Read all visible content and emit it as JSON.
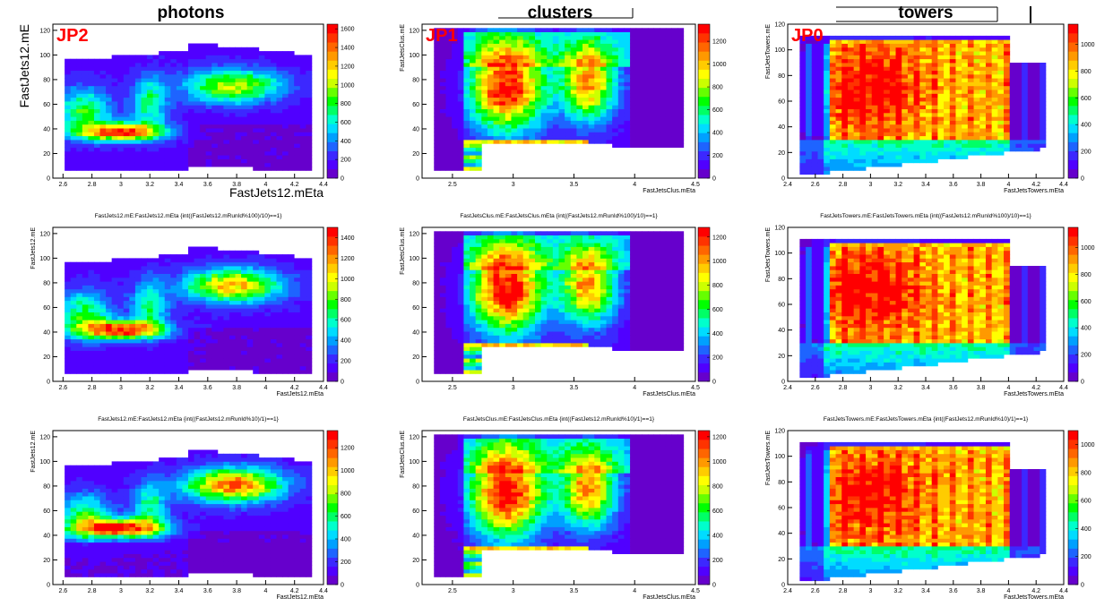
{
  "headers": {
    "photons": "photons",
    "clusters": "clusters",
    "towers": "towers"
  },
  "trigger_labels": [
    "JP2",
    "JP1",
    "JP0"
  ],
  "trigger_color": "#ff0000",
  "palette": [
    "#6600cc",
    "#5000ff",
    "#3c28ff",
    "#1e64ff",
    "#00a0ff",
    "#00dcff",
    "#00ffcc",
    "#00ff66",
    "#00ff00",
    "#66ff00",
    "#ccff00",
    "#ffff00",
    "#ffcc00",
    "#ff9900",
    "#ff6600",
    "#ff3300",
    "#ff0000"
  ],
  "chart_data": [
    {
      "type": "heatmap",
      "row": 0,
      "col": 0,
      "title": "",
      "xlabel": "FastJets12.mEta",
      "ylabel": "FastJets12.mE",
      "xlim": [
        2.53,
        4.4
      ],
      "ylim": [
        0,
        125
      ],
      "xticks": [
        "2.6",
        "2.8",
        "3",
        "3.2",
        "3.4",
        "3.6",
        "3.8",
        "4",
        "4.2",
        "4.4"
      ],
      "yticks": [
        "0",
        "20",
        "40",
        "60",
        "80",
        "100",
        "120"
      ],
      "zmax": 1650,
      "zticks": [
        "0",
        "200",
        "400",
        "600",
        "800",
        "1000",
        "1200",
        "1400",
        "1600"
      ]
    },
    {
      "type": "heatmap",
      "row": 0,
      "col": 1,
      "title": "",
      "xlabel": "FastJetsClus.mEta",
      "ylabel": "FastJetsClus.mE",
      "xlim": [
        2.25,
        4.5
      ],
      "ylim": [
        0,
        125
      ],
      "xticks": [
        "2.5",
        "3",
        "3.5",
        "4",
        "4.5"
      ],
      "yticks": [
        "0",
        "20",
        "40",
        "60",
        "80",
        "100",
        "120"
      ],
      "zmax": 1350,
      "zticks": [
        "0",
        "200",
        "400",
        "600",
        "800",
        "1000",
        "1200"
      ]
    },
    {
      "type": "heatmap",
      "row": 0,
      "col": 2,
      "title": "",
      "xlabel": "FastJetsTowers.mEta",
      "ylabel": "FastJetsTowers.mE",
      "xlim": [
        2.4,
        4.4
      ],
      "ylim": [
        0,
        120
      ],
      "xticks": [
        "2.4",
        "2.6",
        "2.8",
        "3",
        "3.2",
        "3.4",
        "3.6",
        "3.8",
        "4",
        "4.2",
        "4.4"
      ],
      "yticks": [
        "0",
        "20",
        "40",
        "60",
        "80",
        "100",
        "120"
      ],
      "zmax": 1150,
      "zticks": [
        "0",
        "200",
        "400",
        "600",
        "800",
        "1000"
      ]
    },
    {
      "type": "heatmap",
      "row": 1,
      "col": 0,
      "title": "FastJets12.mE:FastJets12.mEta {int((FastJets12.mRunId%100)/10)==1}",
      "xlabel": "FastJets12.mEta",
      "ylabel": "FastJets12.mE",
      "xlim": [
        2.53,
        4.4
      ],
      "ylim": [
        0,
        125
      ],
      "xticks": [
        "2.6",
        "2.8",
        "3",
        "3.2",
        "3.4",
        "3.6",
        "3.8",
        "4",
        "4.2",
        "4.4"
      ],
      "yticks": [
        "0",
        "20",
        "40",
        "60",
        "80",
        "100",
        "120"
      ],
      "zmax": 1500,
      "zticks": [
        "0",
        "200",
        "400",
        "600",
        "800",
        "1000",
        "1200",
        "1400"
      ]
    },
    {
      "type": "heatmap",
      "row": 1,
      "col": 1,
      "title": "FastJetsClus.mE:FastJetsClus.mEta {int((FastJets12.mRunId%100)/10)==1}",
      "xlabel": "FastJetsClus.mEta",
      "ylabel": "FastJetsClus.mE",
      "xlim": [
        2.25,
        4.5
      ],
      "ylim": [
        0,
        125
      ],
      "xticks": [
        "2.5",
        "3",
        "3.5",
        "4",
        "4.5"
      ],
      "yticks": [
        "0",
        "20",
        "40",
        "60",
        "80",
        "100",
        "120"
      ],
      "zmax": 1280,
      "zticks": [
        "0",
        "200",
        "400",
        "600",
        "800",
        "1000",
        "1200"
      ]
    },
    {
      "type": "heatmap",
      "row": 1,
      "col": 2,
      "title": "FastJetsTowers.mE:FastJetsTowers.mEta {int((FastJets12.mRunId%100)/10)==1}",
      "xlabel": "FastJetsTowers.mEta",
      "ylabel": "FastJetsTowers.mE",
      "xlim": [
        2.4,
        4.4
      ],
      "ylim": [
        0,
        120
      ],
      "xticks": [
        "2.4",
        "2.6",
        "2.8",
        "3",
        "3.2",
        "3.4",
        "3.6",
        "3.8",
        "4",
        "4.2",
        "4.4"
      ],
      "yticks": [
        "0",
        "20",
        "40",
        "60",
        "80",
        "100",
        "120"
      ],
      "zmax": 1150,
      "zticks": [
        "0",
        "200",
        "400",
        "600",
        "800",
        "1000"
      ]
    },
    {
      "type": "heatmap",
      "row": 2,
      "col": 0,
      "title": "FastJets12.mE:FastJets12.mEta {int((FastJets12.mRunId%10)/1)==1}",
      "xlabel": "FastJets12.mEta",
      "ylabel": "FastJets12.mE",
      "xlim": [
        2.53,
        4.4
      ],
      "ylim": [
        0,
        125
      ],
      "xticks": [
        "2.6",
        "2.8",
        "3",
        "3.2",
        "3.4",
        "3.6",
        "3.8",
        "4",
        "4.2",
        "4.4"
      ],
      "yticks": [
        "0",
        "20",
        "40",
        "60",
        "80",
        "100",
        "120"
      ],
      "zmax": 1350,
      "zticks": [
        "0",
        "200",
        "400",
        "600",
        "800",
        "1000",
        "1200"
      ]
    },
    {
      "type": "heatmap",
      "row": 2,
      "col": 1,
      "title": "FastJetsClus.mE:FastJetsClus.mEta {int((FastJets12.mRunId%10)/1)==1}",
      "xlabel": "FastJetsClus.mEta",
      "ylabel": "FastJetsClus.mE",
      "xlim": [
        2.25,
        4.5
      ],
      "ylim": [
        0,
        125
      ],
      "xticks": [
        "2.5",
        "3",
        "3.5",
        "4",
        "4.5"
      ],
      "yticks": [
        "0",
        "20",
        "40",
        "60",
        "80",
        "100",
        "120"
      ],
      "zmax": 1250,
      "zticks": [
        "0",
        "200",
        "400",
        "600",
        "800",
        "1000",
        "1200"
      ]
    },
    {
      "type": "heatmap",
      "row": 2,
      "col": 2,
      "title": "FastJetsTowers.mE:FastJetsTowers.mEta {int((FastJets12.mRunId%10)/1)==1}",
      "xlabel": "FastJetsTowers.mEta",
      "ylabel": "FastJetsTowers.mE",
      "xlim": [
        2.4,
        4.4
      ],
      "ylim": [
        0,
        120
      ],
      "xticks": [
        "2.4",
        "2.6",
        "2.8",
        "3",
        "3.2",
        "3.4",
        "3.6",
        "3.8",
        "4",
        "4.2",
        "4.4"
      ],
      "yticks": [
        "0",
        "20",
        "40",
        "60",
        "80",
        "100",
        "120"
      ],
      "zmax": 1100,
      "zticks": [
        "0",
        "200",
        "400",
        "600",
        "800",
        "1000"
      ]
    }
  ]
}
